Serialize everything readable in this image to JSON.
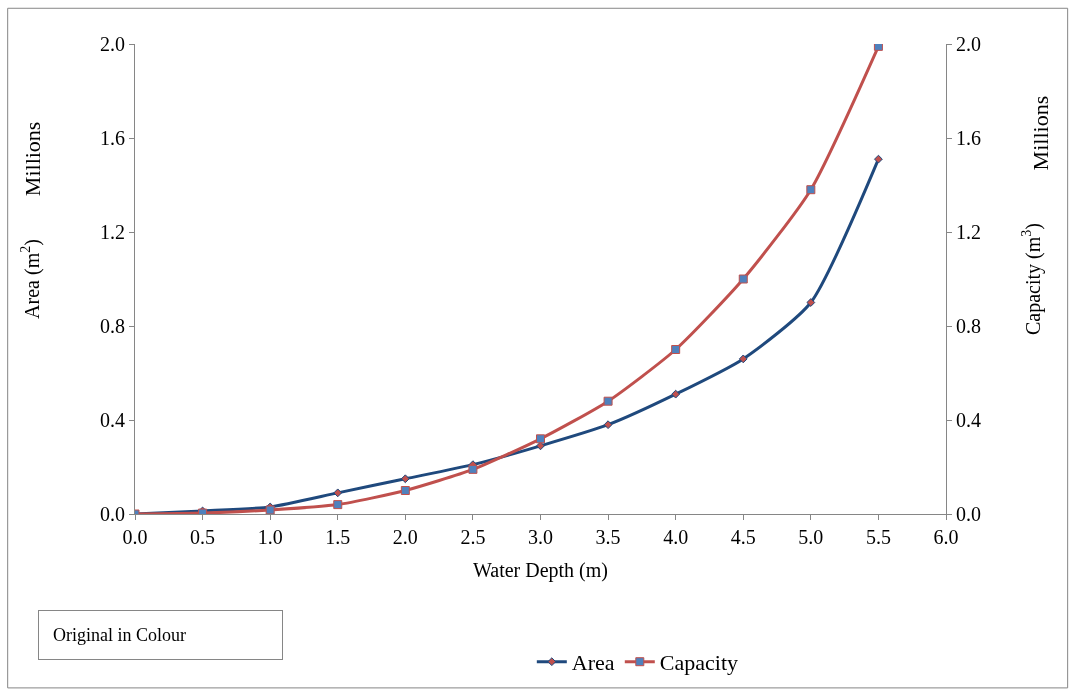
{
  "chart_data": {
    "type": "line",
    "xlabel": "Water Depth (m)",
    "ylabel": "Area (m$^{2}$)",
    "y2label": "Capacity (m$^{3}$)",
    "x": [
      0,
      0.5,
      1.0,
      1.5,
      2.0,
      2.5,
      3.0,
      3.5,
      4.0,
      4.5,
      5.0,
      5.5
    ],
    "series": [
      {
        "name": "Area",
        "color": "#1f497d",
        "marker": "diamond",
        "values": [
          0,
          0.013,
          0.03,
          0.09,
          0.15,
          0.21,
          0.29,
          0.38,
          0.51,
          0.66,
          0.9,
          1.51
        ]
      },
      {
        "name": "Capacity",
        "color": "#c0504d",
        "marker": "square",
        "axis": "y2",
        "values": [
          0,
          0.004,
          0.017,
          0.04,
          0.1,
          0.19,
          0.32,
          0.48,
          0.7,
          1.0,
          1.38,
          1.99
        ]
      }
    ],
    "xlim": [
      0,
      6
    ],
    "xticks": [
      {
        "value": 0,
        "label": "0.0"
      },
      {
        "value": 0.5,
        "label": "0.5"
      },
      {
        "value": 1,
        "label": "1.0"
      },
      {
        "value": 1.5,
        "label": "1.5"
      },
      {
        "value": 2,
        "label": "2.0"
      },
      {
        "value": 2.5,
        "label": "2.5"
      },
      {
        "value": 3,
        "label": "3.0"
      },
      {
        "value": 3.5,
        "label": "3.5"
      },
      {
        "value": 4,
        "label": "4.0"
      },
      {
        "value": 4.5,
        "label": "4.5"
      },
      {
        "value": 5,
        "label": "5.0"
      },
      {
        "value": 5.5,
        "label": "5.5"
      },
      {
        "value": 6,
        "label": "6.0"
      }
    ],
    "ylim": [
      0,
      2
    ],
    "yticks": [
      {
        "value": 0,
        "label": "0.0"
      },
      {
        "value": 0.4,
        "label": "0.4"
      },
      {
        "value": 0.8,
        "label": "0.8"
      },
      {
        "value": 1.2,
        "label": "1.2"
      },
      {
        "value": 1.6,
        "label": "1.6"
      },
      {
        "value": 2,
        "label": "2.0"
      }
    ],
    "y2lim": [
      0,
      2
    ],
    "y2ticks": [
      {
        "value": 0,
        "label": "0.0"
      },
      {
        "value": 0.4,
        "label": "0.4"
      },
      {
        "value": 0.8,
        "label": "0.8"
      },
      {
        "value": 1.2,
        "label": "1.2"
      },
      {
        "value": 1.6,
        "label": "1.6"
      },
      {
        "value": 2,
        "label": "2.0"
      }
    ],
    "annotations": [
      "Millions",
      "Millions",
      "Original in Colour"
    ],
    "legend": "bottom",
    "line_style": "solid"
  }
}
